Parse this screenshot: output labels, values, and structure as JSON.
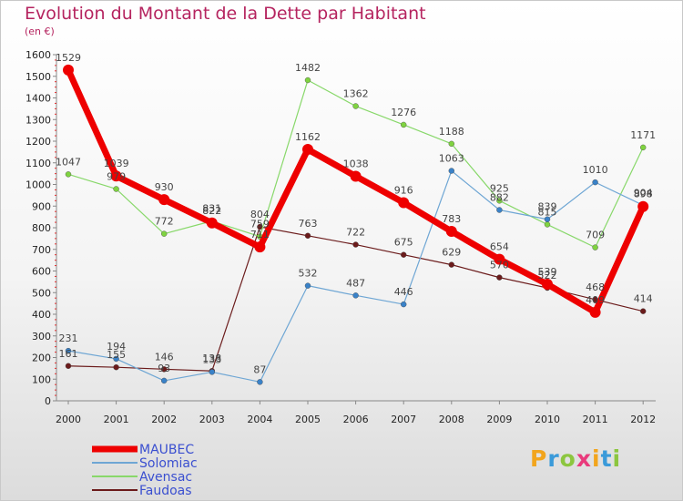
{
  "header": {
    "title": "Evolution du Montant de la Dette par Habitant",
    "subtitle": "(en €)"
  },
  "logo": {
    "text": "Proxiti",
    "letters": [
      {
        "ch": "P",
        "color": "#f2a51d"
      },
      {
        "ch": "r",
        "color": "#3a9ad9"
      },
      {
        "ch": "o",
        "color": "#8cc63f"
      },
      {
        "ch": "x",
        "color": "#e93a7c"
      },
      {
        "ch": "i",
        "color": "#f2a51d"
      },
      {
        "ch": "t",
        "color": "#3a9ad9"
      },
      {
        "ch": "i",
        "color": "#8cc63f"
      }
    ]
  },
  "chart_data": {
    "type": "line",
    "title": "Evolution du Montant de la Dette par Habitant",
    "subtitle": "(en €)",
    "xlabel": "",
    "ylabel": "",
    "x": [
      "2000",
      "2001",
      "2002",
      "2003",
      "2004",
      "2005",
      "2006",
      "2007",
      "2008",
      "2009",
      "2010",
      "2011",
      "2012"
    ],
    "ylim": [
      0,
      1600
    ],
    "yticks": [
      0,
      100,
      200,
      300,
      400,
      500,
      600,
      700,
      800,
      900,
      1000,
      1100,
      1200,
      1300,
      1400,
      1500,
      1600
    ],
    "grid": false,
    "legend_position": "bottom-left",
    "series": [
      {
        "name": "Faudoas",
        "color": "#6b1b1b",
        "marker": "#6b1b1b",
        "width": 1.2,
        "values": [
          161,
          155,
          146,
          138,
          804,
          763,
          722,
          675,
          629,
          570,
          522,
          468,
          414
        ]
      },
      {
        "name": "Avensac",
        "color": "#88d86a",
        "marker": "#7fd340",
        "width": 1.2,
        "values": [
          1047,
          979,
          772,
          831,
          759,
          1482,
          1362,
          1276,
          1188,
          925,
          815,
          709,
          1171
        ]
      },
      {
        "name": "Solomiac",
        "color": "#6ea6d4",
        "marker": "#3a82c8",
        "width": 1.2,
        "values": [
          231,
          194,
          93,
          133,
          87,
          532,
          487,
          446,
          1063,
          882,
          839,
          1010,
          904
        ]
      },
      {
        "name": "MAUBEC",
        "color": "#ee0000",
        "marker": "#ee0000",
        "width": 7,
        "values": [
          1529,
          1039,
          930,
          822,
          711,
          1162,
          1038,
          916,
          783,
          654,
          539,
          409,
          898
        ]
      }
    ],
    "legend": [
      {
        "name": "MAUBEC",
        "color": "#ee0000"
      },
      {
        "name": "Solomiac",
        "color": "#6ea6d4"
      },
      {
        "name": "Avensac",
        "color": "#88d86a"
      },
      {
        "name": "Faudoas",
        "color": "#6b1b1b"
      }
    ]
  }
}
